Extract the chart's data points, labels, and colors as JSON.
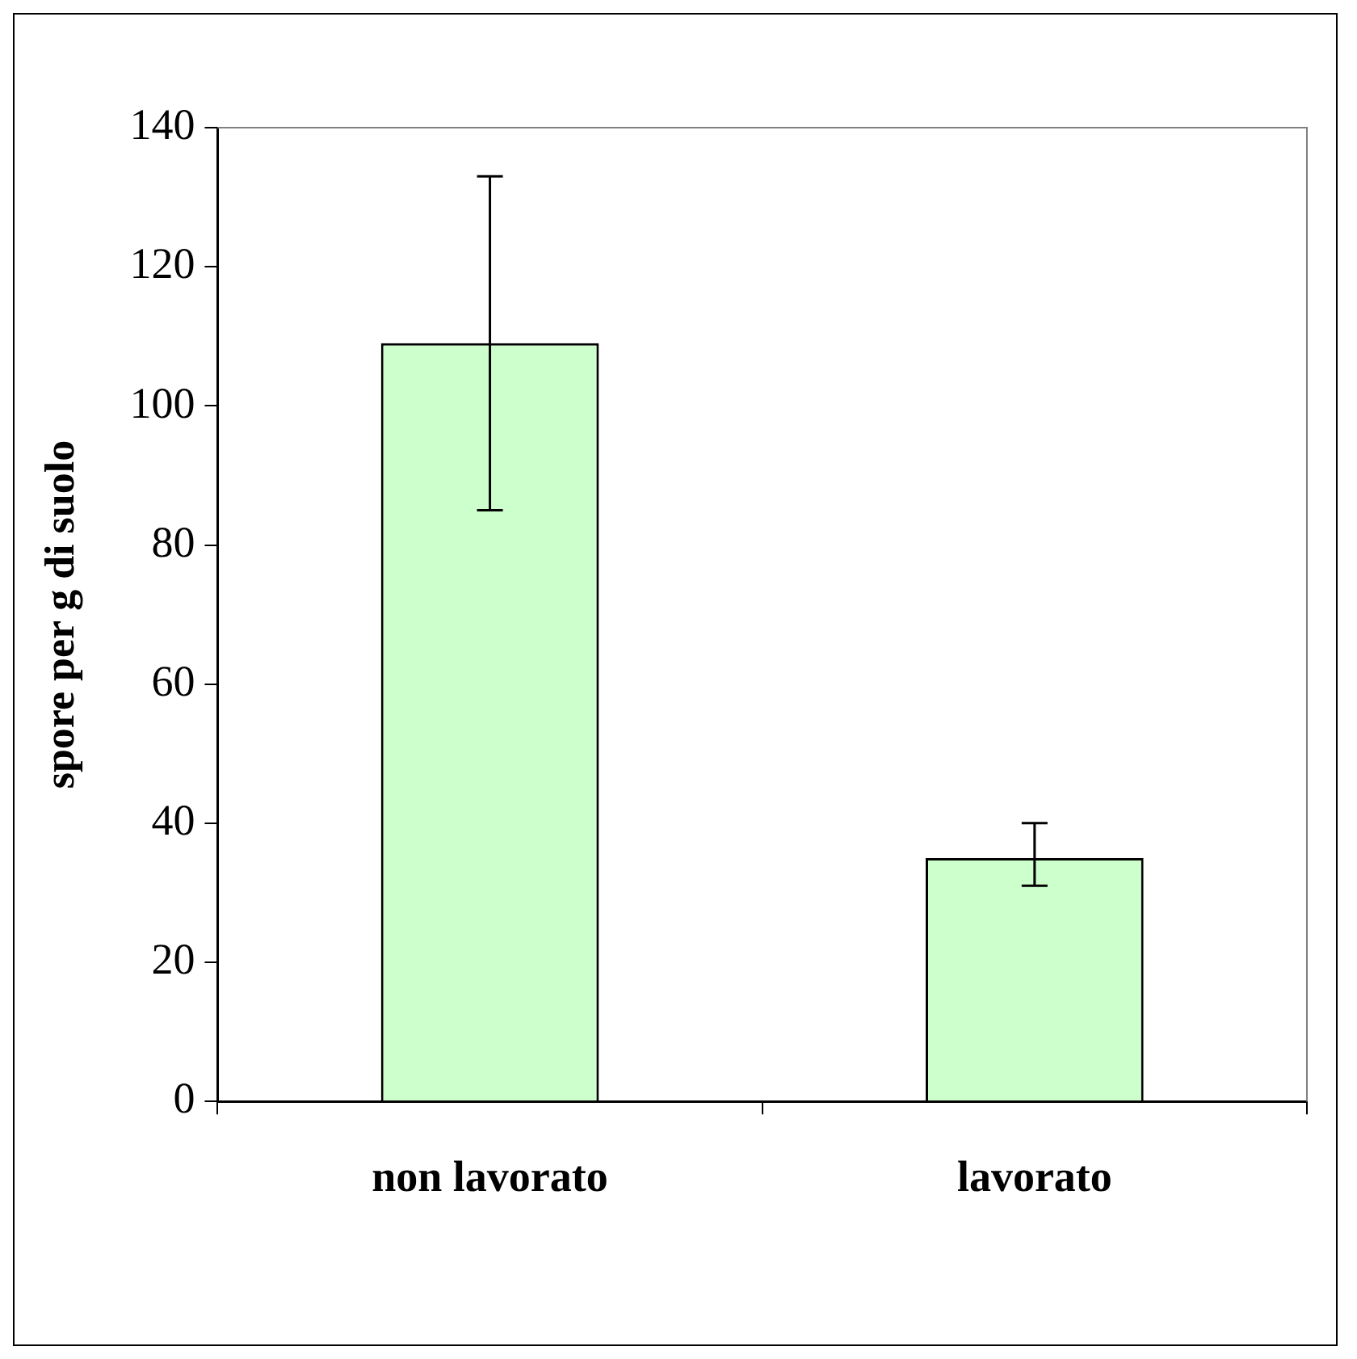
{
  "chart_data": {
    "type": "bar",
    "ylabel": "spore per g di suolo",
    "categories": [
      "non lavorato",
      "lavorato"
    ],
    "values": [
      109,
      35
    ],
    "color": "#ccffcc",
    "errors": [
      [
        85,
        133
      ],
      [
        31,
        40
      ]
    ],
    "ylim": [
      0,
      140
    ],
    "yticks": [
      0,
      20,
      40,
      60,
      80,
      100,
      120,
      140
    ],
    "grid": false,
    "legend": false
  }
}
